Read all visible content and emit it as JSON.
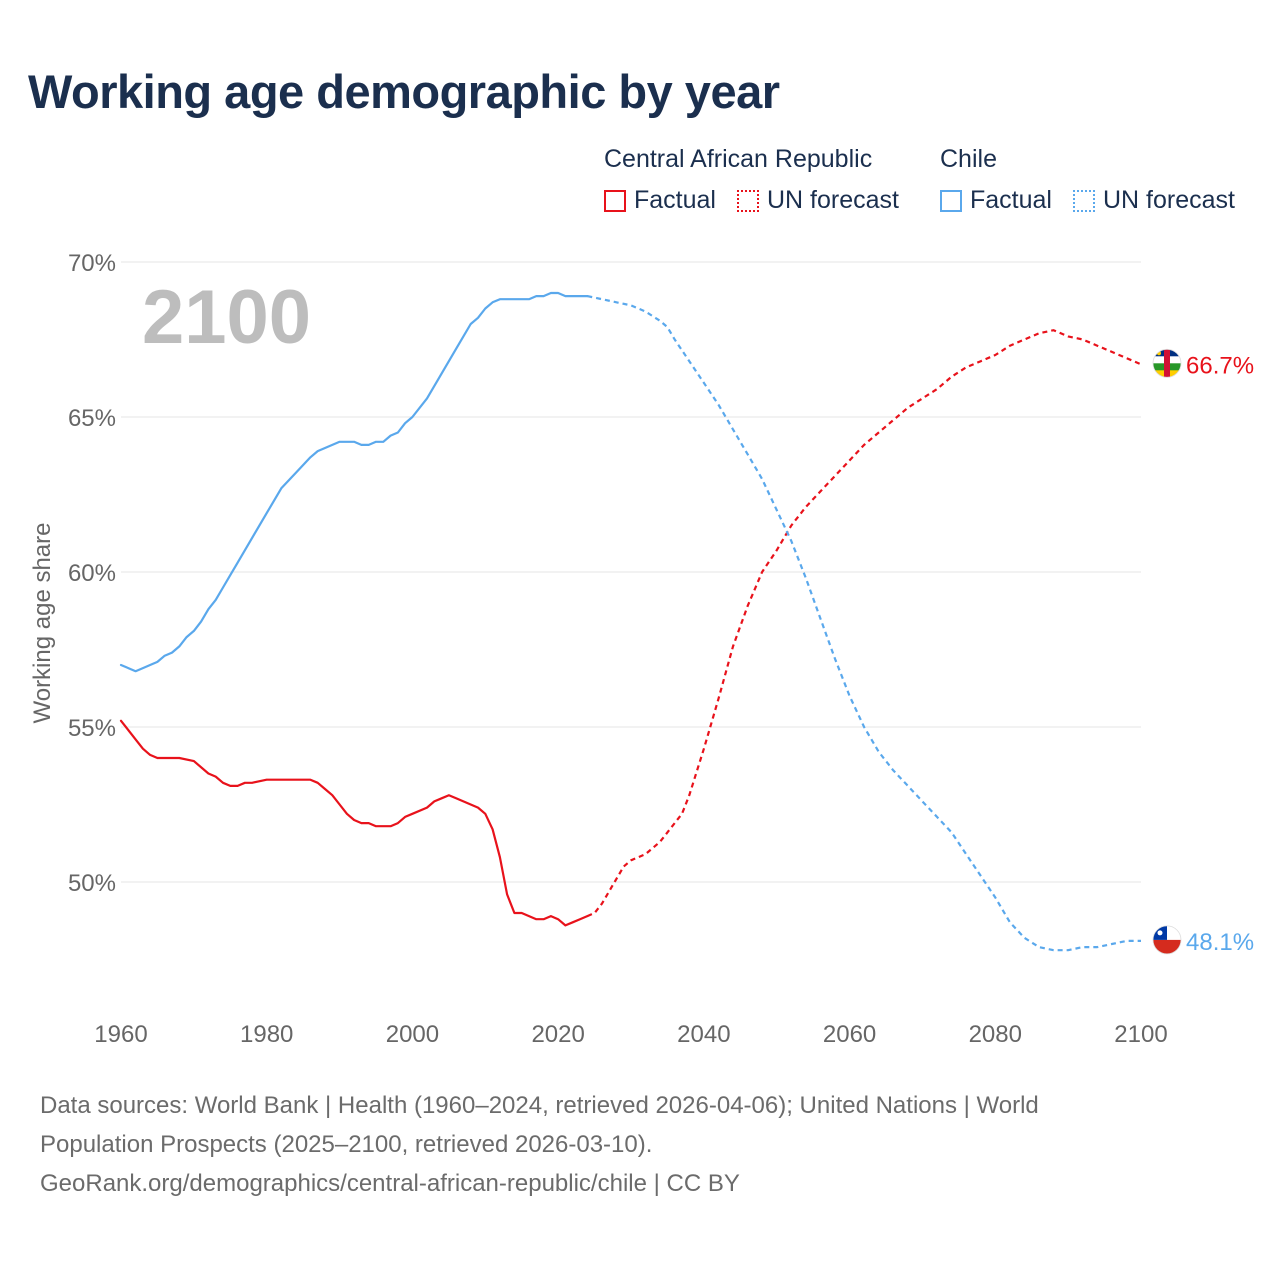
{
  "title": "Working age demographic by year",
  "legend": {
    "groups": [
      {
        "name": "Central African Republic",
        "factual": "Factual",
        "forecast": "UN forecast",
        "color": "#e8121b"
      },
      {
        "name": "Chile",
        "factual": "Factual",
        "forecast": "UN forecast",
        "color": "#5aa8ec"
      }
    ]
  },
  "sources": {
    "line1": "Data sources: World Bank | Health (1960–2024, retrieved 2026-04-06); United Nations | World",
    "line2": "Population Prospects (2025–2100, retrieved 2026-03-10).",
    "line3": "GeoRank.org/demographics/central-african-republic/chile | CC BY"
  },
  "chart_data": {
    "type": "line",
    "title": "Working age demographic by year",
    "xlabel": "",
    "ylabel": "Working age share",
    "xlim": [
      1960,
      2100
    ],
    "ylim": [
      46,
      70
    ],
    "x_ticks": [
      1960,
      1980,
      2000,
      2020,
      2040,
      2060,
      2080,
      2100
    ],
    "x_tick_labels": [
      "1960",
      "1980",
      "2000",
      "2020",
      "2040",
      "2060",
      "2080",
      "2100"
    ],
    "y_ticks": [
      50,
      55,
      60,
      65,
      70
    ],
    "y_tick_labels": [
      "50%",
      "55%",
      "60%",
      "65%",
      "70%"
    ],
    "year_label": "2100",
    "grid": true,
    "series": [
      {
        "name": "Central African Republic",
        "color": "#e8121b",
        "end_label": "66.7%",
        "flag": "central-african-republic-flag-icon",
        "factual": {
          "x": [
            1960,
            1962,
            1963,
            1964,
            1965,
            1967,
            1968,
            1970,
            1972,
            1973,
            1974,
            1975,
            1976,
            1977,
            1978,
            1980,
            1982,
            1984,
            1986,
            1987,
            1988,
            1989,
            1990,
            1991,
            1992,
            1993,
            1994,
            1995,
            1996,
            1997,
            1998,
            1999,
            2000,
            2002,
            2003,
            2004,
            2005,
            2006,
            2008,
            2009,
            2010,
            2011,
            2012,
            2013,
            2014,
            2015,
            2016,
            2017,
            2018,
            2019,
            2020,
            2021,
            2022,
            2023,
            2024
          ],
          "y": [
            55.2,
            54.6,
            54.3,
            54.1,
            54.0,
            54.0,
            54.0,
            53.9,
            53.5,
            53.4,
            53.2,
            53.1,
            53.1,
            53.2,
            53.2,
            53.3,
            53.3,
            53.3,
            53.3,
            53.2,
            53.0,
            52.8,
            52.5,
            52.2,
            52.0,
            51.9,
            51.9,
            51.8,
            51.8,
            51.8,
            51.9,
            52.1,
            52.2,
            52.4,
            52.6,
            52.7,
            52.8,
            52.7,
            52.5,
            52.4,
            52.2,
            51.7,
            50.8,
            49.6,
            49.0,
            49.0,
            48.9,
            48.8,
            48.8,
            48.9,
            48.8,
            48.6,
            48.7,
            48.8,
            48.9
          ]
        },
        "forecast": {
          "x": [
            2024,
            2025,
            2026,
            2028,
            2029,
            2030,
            2032,
            2034,
            2036,
            2037,
            2038,
            2040,
            2042,
            2044,
            2046,
            2048,
            2050,
            2052,
            2054,
            2056,
            2058,
            2060,
            2062,
            2064,
            2066,
            2068,
            2070,
            2072,
            2074,
            2076,
            2078,
            2080,
            2082,
            2084,
            2086,
            2088,
            2090,
            2092,
            2094,
            2096,
            2098,
            2100
          ],
          "y": [
            48.9,
            49.0,
            49.3,
            50.1,
            50.5,
            50.7,
            50.9,
            51.3,
            51.9,
            52.2,
            52.8,
            54.3,
            55.9,
            57.6,
            58.9,
            60.0,
            60.7,
            61.5,
            62.1,
            62.6,
            63.1,
            63.6,
            64.1,
            64.5,
            64.9,
            65.3,
            65.6,
            65.9,
            66.3,
            66.6,
            66.8,
            67.0,
            67.3,
            67.5,
            67.7,
            67.8,
            67.6,
            67.5,
            67.3,
            67.1,
            66.9,
            66.7
          ]
        }
      },
      {
        "name": "Chile",
        "color": "#5aa8ec",
        "end_label": "48.1%",
        "flag": "chile-flag-icon",
        "factual": {
          "x": [
            1960,
            1962,
            1963,
            1964,
            1965,
            1966,
            1967,
            1968,
            1969,
            1970,
            1971,
            1972,
            1973,
            1974,
            1975,
            1976,
            1978,
            1980,
            1982,
            1984,
            1986,
            1987,
            1988,
            1990,
            1992,
            1993,
            1994,
            1995,
            1996,
            1997,
            1998,
            1999,
            2000,
            2002,
            2004,
            2006,
            2008,
            2009,
            2010,
            2011,
            2012,
            2013,
            2015,
            2016,
            2017,
            2018,
            2019,
            2020,
            2021,
            2022,
            2024
          ],
          "y": [
            57.0,
            56.8,
            56.9,
            57.0,
            57.1,
            57.3,
            57.4,
            57.6,
            57.9,
            58.1,
            58.4,
            58.8,
            59.1,
            59.5,
            59.9,
            60.3,
            61.1,
            61.9,
            62.7,
            63.2,
            63.7,
            63.9,
            64.0,
            64.2,
            64.2,
            64.1,
            64.1,
            64.2,
            64.2,
            64.4,
            64.5,
            64.8,
            65.0,
            65.6,
            66.4,
            67.2,
            68.0,
            68.2,
            68.5,
            68.7,
            68.8,
            68.8,
            68.8,
            68.8,
            68.9,
            68.9,
            69.0,
            69.0,
            68.9,
            68.9,
            68.9
          ]
        },
        "forecast": {
          "x": [
            2024,
            2026,
            2028,
            2030,
            2032,
            2034,
            2035,
            2036,
            2038,
            2040,
            2042,
            2044,
            2046,
            2048,
            2050,
            2052,
            2054,
            2056,
            2058,
            2060,
            2062,
            2064,
            2066,
            2068,
            2070,
            2072,
            2074,
            2076,
            2078,
            2080,
            2082,
            2084,
            2086,
            2088,
            2090,
            2092,
            2094,
            2096,
            2098,
            2100
          ],
          "y": [
            68.9,
            68.8,
            68.7,
            68.6,
            68.4,
            68.1,
            67.9,
            67.5,
            66.8,
            66.1,
            65.4,
            64.6,
            63.8,
            63.0,
            62.0,
            61.0,
            59.8,
            58.5,
            57.2,
            56.0,
            55.0,
            54.2,
            53.6,
            53.1,
            52.6,
            52.1,
            51.6,
            50.9,
            50.2,
            49.5,
            48.7,
            48.2,
            47.9,
            47.8,
            47.8,
            47.9,
            47.9,
            48.0,
            48.1,
            48.1
          ]
        }
      }
    ]
  }
}
